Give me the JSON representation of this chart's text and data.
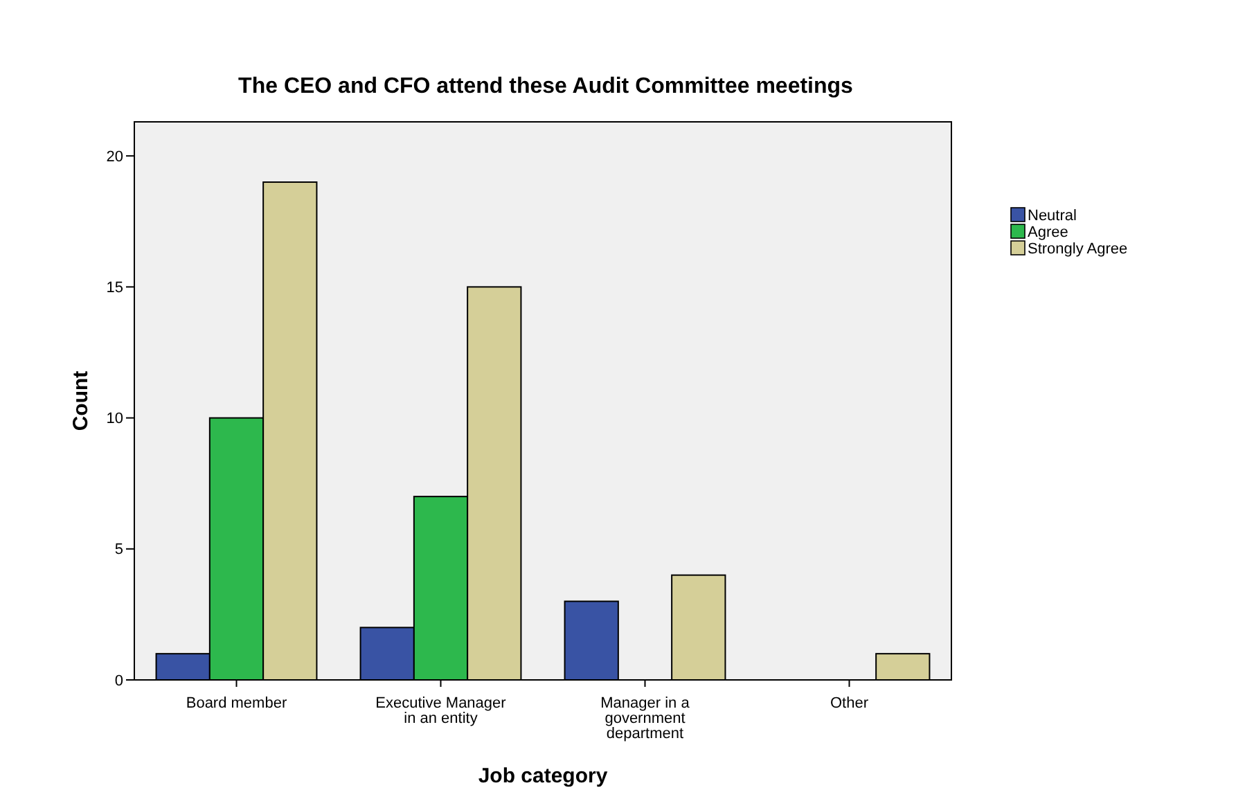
{
  "chart_data": {
    "type": "bar",
    "title": "The CEO and CFO attend these Audit Committee meetings",
    "xlabel": "Job category",
    "ylabel": "Count",
    "categories": [
      "Board member",
      "Executive Manager in an entity",
      "Manager in a government department",
      "Other"
    ],
    "series": [
      {
        "name": "Neutral",
        "color": "#3953a4",
        "values": [
          1,
          2,
          3,
          0
        ]
      },
      {
        "name": "Agree",
        "color": "#2db84d",
        "values": [
          10,
          7,
          0,
          0
        ]
      },
      {
        "name": "Strongly Agree",
        "color": "#d5cf98",
        "values": [
          19,
          15,
          4,
          1
        ]
      }
    ],
    "ylim": [
      0,
      21.3
    ],
    "yticks": [
      0,
      5,
      10,
      15,
      20
    ],
    "grid": false,
    "legend": "right"
  }
}
